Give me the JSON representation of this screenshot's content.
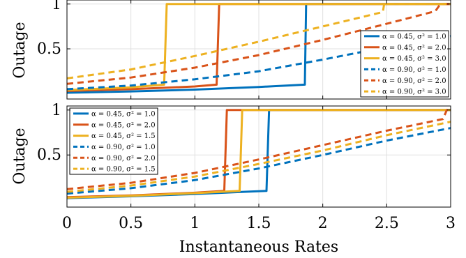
{
  "chart_data": [
    {
      "type": "line",
      "ylabel": "Outage",
      "xlabel": "",
      "xlim": [
        0,
        3
      ],
      "ylim": [
        0,
        1
      ],
      "xticks": [
        "0",
        "0.5",
        "1",
        "1.5",
        "2",
        "2.5",
        "3"
      ],
      "yticks": [
        "0.5",
        "1"
      ],
      "grid": true,
      "legend_position": "right",
      "series": [
        {
          "name": "α = 0.45, σ² = 1.0",
          "color": "#0072BD",
          "dash": "solid",
          "x": [
            0,
            0.5,
            1.0,
            1.5,
            1.86,
            1.87,
            3.0
          ],
          "y": [
            0.01,
            0.025,
            0.045,
            0.075,
            0.1,
            1.0,
            1.0
          ]
        },
        {
          "name": "α = 0.45, σ² = 2.0",
          "color": "#D95319",
          "dash": "solid",
          "x": [
            0,
            0.5,
            1.0,
            1.17,
            1.19,
            3.0
          ],
          "y": [
            0.03,
            0.05,
            0.08,
            0.1,
            1.0,
            1.0
          ]
        },
        {
          "name": "α = 0.45, σ² = 3.0",
          "color": "#EDB120",
          "dash": "solid",
          "x": [
            0,
            0.5,
            0.76,
            0.78,
            3.0
          ],
          "y": [
            0.04,
            0.07,
            0.1,
            1.0,
            1.0
          ]
        },
        {
          "name": "α = 0.90, σ² = 1.0",
          "color": "#0072BD",
          "dash": "dashed",
          "x": [
            0,
            0.5,
            1.0,
            1.5,
            2.0,
            2.5,
            3.0
          ],
          "y": [
            0.05,
            0.09,
            0.16,
            0.25,
            0.38,
            0.52,
            0.64
          ]
        },
        {
          "name": "α = 0.90, σ² = 2.0",
          "color": "#D95319",
          "dash": "dashed",
          "x": [
            0,
            0.5,
            1.0,
            1.5,
            2.0,
            2.5,
            2.88,
            2.92,
            3.0
          ],
          "y": [
            0.11,
            0.18,
            0.29,
            0.43,
            0.6,
            0.78,
            0.92,
            1.0,
            1.0
          ]
        },
        {
          "name": "α = 0.90, σ² = 3.0",
          "color": "#EDB120",
          "dash": "dashed",
          "x": [
            0,
            0.5,
            1.0,
            1.5,
            2.0,
            2.47,
            2.48,
            3.0
          ],
          "y": [
            0.17,
            0.27,
            0.42,
            0.58,
            0.75,
            0.91,
            1.0,
            1.0
          ]
        }
      ]
    },
    {
      "type": "line",
      "ylabel": "Outage",
      "xlabel": "Instantaneous Rates",
      "xlim": [
        0,
        3
      ],
      "ylim": [
        0,
        1
      ],
      "xticks": [
        "0",
        "0.5",
        "1",
        "1.5",
        "2",
        "2.5",
        "3"
      ],
      "yticks": [
        "0.5",
        "1"
      ],
      "grid": true,
      "legend_position": "top-left",
      "series": [
        {
          "name": "α = 0.45, σ² = 1.0",
          "color": "#0072BD",
          "dash": "solid",
          "x": [
            0,
            0.5,
            1.0,
            1.3,
            1.56,
            1.58,
            3.0
          ],
          "y": [
            0.02,
            0.04,
            0.065,
            0.085,
            0.1,
            1.0,
            1.0
          ]
        },
        {
          "name": "α = 0.45, σ² = 2.0",
          "color": "#D95319",
          "dash": "solid",
          "x": [
            0,
            0.5,
            1.0,
            1.23,
            1.25,
            3.0
          ],
          "y": [
            0.03,
            0.05,
            0.08,
            0.1,
            1.0,
            1.0
          ]
        },
        {
          "name": "α = 0.45, σ² = 1.5",
          "color": "#EDB120",
          "dash": "solid",
          "x": [
            0,
            0.5,
            1.0,
            1.35,
            1.37,
            3.0
          ],
          "y": [
            0.025,
            0.045,
            0.075,
            0.1,
            1.0,
            1.0
          ]
        },
        {
          "name": "α = 0.90, σ² = 1.0",
          "color": "#0072BD",
          "dash": "dashed",
          "x": [
            0,
            0.5,
            1.0,
            1.5,
            2.0,
            2.5,
            3.0
          ],
          "y": [
            0.07,
            0.13,
            0.22,
            0.35,
            0.5,
            0.66,
            0.8
          ]
        },
        {
          "name": "α = 0.90, σ² = 2.0",
          "color": "#D95319",
          "dash": "dashed",
          "x": [
            0,
            0.5,
            1.0,
            1.5,
            2.0,
            2.5,
            2.94,
            2.97,
            3.0
          ],
          "y": [
            0.12,
            0.19,
            0.3,
            0.45,
            0.61,
            0.77,
            0.9,
            1.0,
            1.0
          ]
        },
        {
          "name": "α = 0.90, σ² = 1.5",
          "color": "#EDB120",
          "dash": "dashed",
          "x": [
            0,
            0.5,
            1.0,
            1.5,
            2.0,
            2.5,
            3.0
          ],
          "y": [
            0.09,
            0.16,
            0.26,
            0.4,
            0.55,
            0.72,
            0.87
          ]
        }
      ]
    }
  ]
}
